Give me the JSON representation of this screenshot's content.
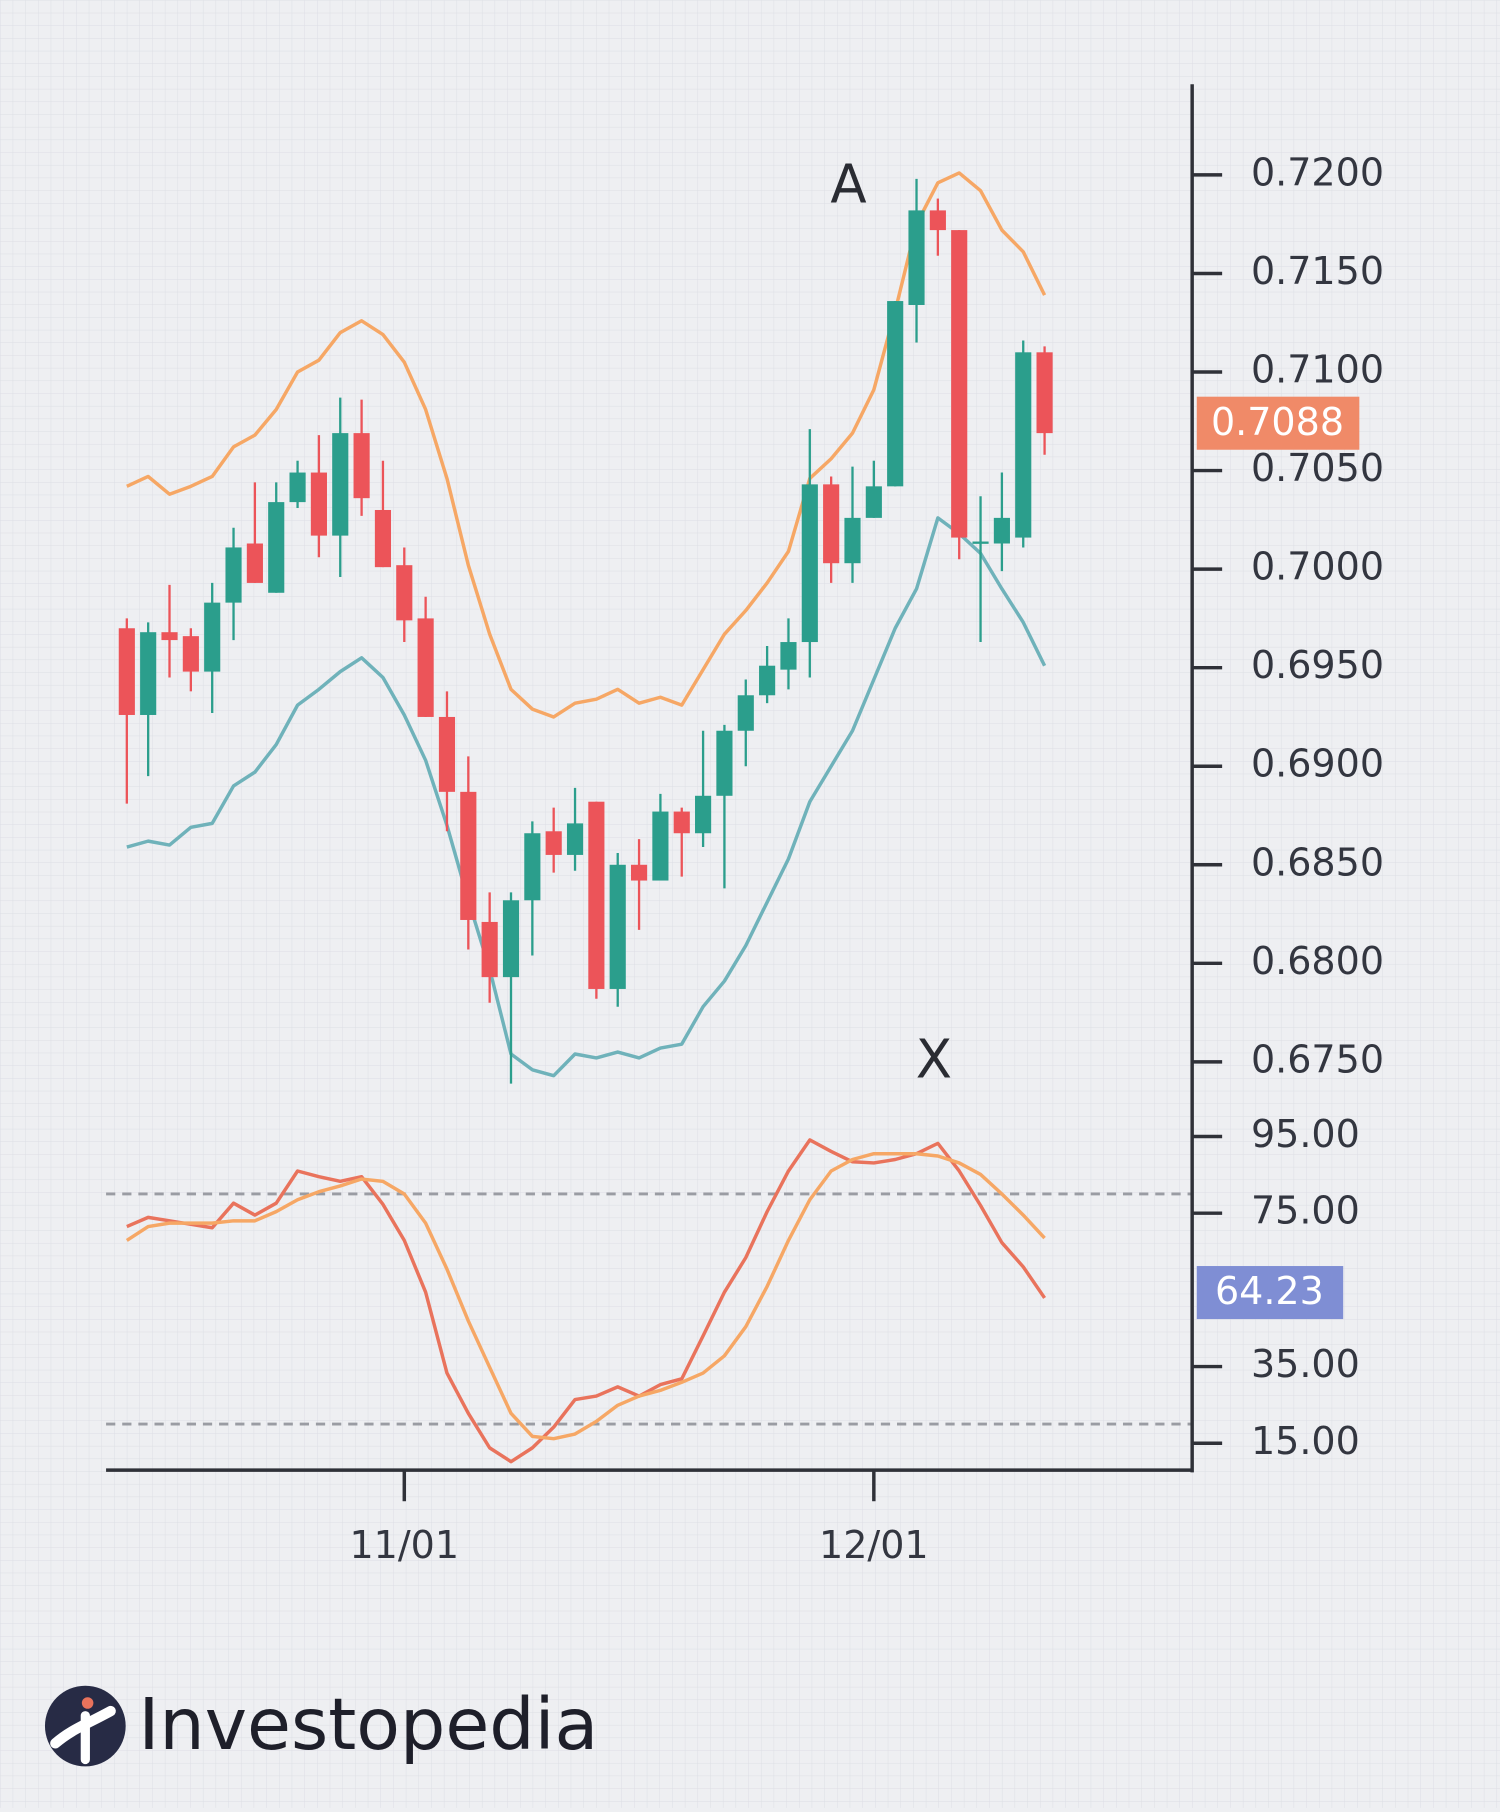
{
  "chart_data": {
    "type": "candlestick",
    "categories": [
      null,
      null,
      null,
      null,
      null,
      null,
      null,
      null,
      null,
      null,
      null,
      null,
      null,
      "11/01",
      null,
      null,
      null,
      null,
      null,
      null,
      null,
      null,
      null,
      null,
      null,
      null,
      null,
      null,
      null,
      null,
      null,
      null,
      null,
      null,
      null,
      "12/01",
      null,
      null,
      null,
      null,
      null,
      null,
      null,
      null
    ],
    "open": [
      0.697,
      0.6926,
      0.6968,
      0.6966,
      0.6948,
      0.6983,
      0.7013,
      0.6988,
      0.7034,
      0.7049,
      0.7017,
      0.7069,
      0.703,
      0.7002,
      0.6975,
      0.6925,
      0.6887,
      0.6821,
      0.6793,
      0.6832,
      0.6867,
      0.6855,
      0.6882,
      0.6787,
      0.685,
      0.6842,
      0.6877,
      0.6866,
      0.6885,
      0.6918,
      0.6936,
      0.6949,
      0.6963,
      0.7043,
      0.7003,
      0.7026,
      0.7042,
      0.7134,
      0.7182,
      0.7172,
      0.7013,
      0.7013,
      0.7016,
      0.711
    ],
    "high": [
      0.6975,
      0.6973,
      0.6992,
      0.697,
      0.6993,
      0.7021,
      0.7044,
      0.7044,
      0.7055,
      0.7068,
      0.7087,
      0.7086,
      0.7055,
      0.7011,
      0.6986,
      0.6938,
      0.6905,
      0.6836,
      0.6836,
      0.6872,
      0.6879,
      0.6889,
      0.6882,
      0.6856,
      0.6863,
      0.6886,
      0.6879,
      0.6918,
      0.6921,
      0.6944,
      0.6961,
      0.6975,
      0.7071,
      0.7047,
      0.7052,
      0.7055,
      0.7136,
      0.7198,
      0.7188,
      0.7172,
      0.7037,
      0.7049,
      0.7116,
      0.7113
    ],
    "low": [
      0.6881,
      0.6895,
      0.6945,
      0.6938,
      0.6927,
      0.6964,
      0.6993,
      0.6988,
      0.7031,
      0.7006,
      0.6996,
      0.7027,
      0.7001,
      0.6963,
      0.6925,
      0.6867,
      0.6807,
      0.678,
      0.6739,
      0.6804,
      0.6846,
      0.6847,
      0.6782,
      0.6778,
      0.6817,
      0.6842,
      0.6844,
      0.6859,
      0.6838,
      0.69,
      0.6932,
      0.6939,
      0.6945,
      0.6993,
      0.6993,
      0.7026,
      0.7042,
      0.7115,
      0.7159,
      0.7005,
      0.6963,
      0.6999,
      0.7011,
      0.7058
    ],
    "close": [
      0.6926,
      0.6968,
      0.6964,
      0.6948,
      0.6983,
      0.7011,
      0.6993,
      0.7034,
      0.7049,
      0.7017,
      0.7069,
      0.7036,
      0.7001,
      0.6974,
      0.6925,
      0.6887,
      0.6822,
      0.6793,
      0.6832,
      0.6866,
      0.6855,
      0.6871,
      0.6787,
      0.685,
      0.6842,
      0.6877,
      0.6866,
      0.6885,
      0.6918,
      0.6936,
      0.6951,
      0.6963,
      0.7043,
      0.7003,
      0.7026,
      0.7042,
      0.7136,
      0.7182,
      0.7172,
      0.7016,
      0.7014,
      0.7026,
      0.711,
      0.7069
    ],
    "up_color": "#2b9e8c",
    "down_color": "#ec5459",
    "ylim": [
      0.6733,
      0.7246
    ],
    "yticks": [
      {
        "value": 0.72,
        "label": "0.7200"
      },
      {
        "value": 0.715,
        "label": "0.7150"
      },
      {
        "value": 0.71,
        "label": "0.7100"
      },
      {
        "value": 0.705,
        "label": "0.7050"
      },
      {
        "value": 0.7,
        "label": "0.7000"
      },
      {
        "value": 0.695,
        "label": "0.6950"
      },
      {
        "value": 0.69,
        "label": "0.6900"
      },
      {
        "value": 0.685,
        "label": "0.6850"
      },
      {
        "value": 0.68,
        "label": "0.6800"
      },
      {
        "value": 0.675,
        "label": "0.6750"
      }
    ],
    "series": [
      {
        "color": "#f6a765",
        "values": [
          0.7042,
          0.7047,
          0.7038,
          0.7042,
          0.7047,
          0.7062,
          0.7068,
          0.7081,
          0.71,
          0.7106,
          0.712,
          0.7126,
          0.7119,
          0.7105,
          0.7081,
          0.7046,
          0.7002,
          0.6967,
          0.6939,
          0.6929,
          0.6925,
          0.6932,
          0.6934,
          0.6939,
          0.6932,
          0.6935,
          0.6931,
          0.6949,
          0.6967,
          0.6979,
          0.6993,
          0.7009,
          0.7046,
          0.7056,
          0.7069,
          0.7091,
          0.7131,
          0.7175,
          0.7196,
          0.7201,
          0.7192,
          0.7172,
          0.7161,
          0.7139
        ]
      },
      {
        "color": "#6fb2ba",
        "values": [
          0.6859,
          0.6862,
          0.686,
          0.6869,
          0.6871,
          0.689,
          0.6897,
          0.6911,
          0.6931,
          0.6939,
          0.6948,
          0.6955,
          0.6945,
          0.6926,
          0.6903,
          0.687,
          0.6832,
          0.6797,
          0.6754,
          0.6746,
          0.6743,
          0.6754,
          0.6752,
          0.6755,
          0.6752,
          0.6757,
          0.6759,
          0.6778,
          0.6791,
          0.6809,
          0.6831,
          0.6853,
          0.6882,
          0.69,
          0.6918,
          0.6944,
          0.697,
          0.699,
          0.7026,
          0.7018,
          0.7008,
          0.699,
          0.6973,
          0.6951
        ]
      }
    ],
    "price_badge": "0.7088",
    "price_badge_color": "#f08a68",
    "annotations": [
      "A",
      "X"
    ],
    "oscillator": {
      "type": "line",
      "ylim": [
        8,
        100
      ],
      "yticks": [
        {
          "value": 95,
          "label": "95.00"
        },
        {
          "value": 75,
          "label": "75.00"
        },
        {
          "value": 35,
          "label": "35.00"
        },
        {
          "value": 15,
          "label": "15.00"
        }
      ],
      "levels": [
        80,
        20
      ],
      "series": [
        {
          "color": "#e9735c",
          "values": [
            71.5,
            73.9,
            73.0,
            72.1,
            71.2,
            77.6,
            74.5,
            77.6,
            86.0,
            84.5,
            83.3,
            84.5,
            77.3,
            67.9,
            54.4,
            33.3,
            22.8,
            13.8,
            10.2,
            13.8,
            19.2,
            26.4,
            27.3,
            29.7,
            27.3,
            30.3,
            31.8,
            43.0,
            54.4,
            63.4,
            75.4,
            86.0,
            94.1,
            91.1,
            88.4,
            88.1,
            89.0,
            90.5,
            93.2,
            86.0,
            77.0,
            67.3,
            61.0,
            52.9
          ]
        },
        {
          "color": "#f6a765",
          "values": [
            67.9,
            71.5,
            72.4,
            72.4,
            72.4,
            73.0,
            73.0,
            75.4,
            78.5,
            80.6,
            82.1,
            83.9,
            83.3,
            80.0,
            72.4,
            60.4,
            46.9,
            34.8,
            22.8,
            16.8,
            16.2,
            17.4,
            20.7,
            24.9,
            27.3,
            28.8,
            30.9,
            33.3,
            37.8,
            45.4,
            55.9,
            67.9,
            78.5,
            86.0,
            89.0,
            90.5,
            90.5,
            90.5,
            89.9,
            88.1,
            85.1,
            80.0,
            74.5,
            68.5
          ]
        }
      ],
      "badge": "64.23",
      "badge_color": "#7f8ed4"
    }
  },
  "brand": "Investopedia"
}
